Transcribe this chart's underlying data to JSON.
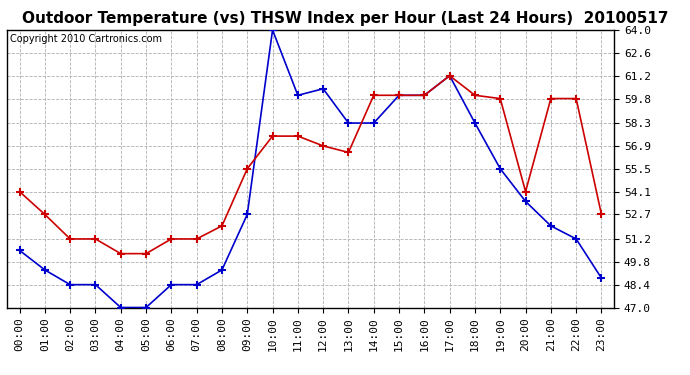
{
  "title": "Outdoor Temperature (vs) THSW Index per Hour (Last 24 Hours)  20100517",
  "copyright": "Copyright 2010 Cartronics.com",
  "x_labels": [
    "00:00",
    "01:00",
    "02:00",
    "03:00",
    "04:00",
    "05:00",
    "06:00",
    "07:00",
    "08:00",
    "09:00",
    "10:00",
    "11:00",
    "12:00",
    "13:00",
    "14:00",
    "15:00",
    "16:00",
    "17:00",
    "18:00",
    "19:00",
    "20:00",
    "21:00",
    "22:00",
    "23:00"
  ],
  "temp_data": [
    50.5,
    49.3,
    48.4,
    48.4,
    47.0,
    47.0,
    48.4,
    48.4,
    49.3,
    52.7,
    64.0,
    60.0,
    60.4,
    58.3,
    58.3,
    60.0,
    60.0,
    61.2,
    58.3,
    55.5,
    53.5,
    52.0,
    51.2,
    48.8
  ],
  "thsw_data": [
    54.1,
    52.7,
    51.2,
    51.2,
    50.3,
    50.3,
    51.2,
    51.2,
    52.0,
    55.5,
    57.5,
    57.5,
    56.9,
    56.5,
    60.0,
    60.0,
    60.0,
    61.2,
    60.0,
    59.8,
    54.1,
    59.8,
    59.8,
    52.7
  ],
  "temp_color": "#0000cc",
  "thsw_color": "#cc0000",
  "bg_color": "#ffffff",
  "plot_bg_color": "#ffffff",
  "grid_color": "#b0b0b0",
  "ylim": [
    47.0,
    64.0
  ],
  "yticks": [
    47.0,
    48.4,
    49.8,
    51.2,
    52.7,
    54.1,
    55.5,
    56.9,
    58.3,
    59.8,
    61.2,
    62.6,
    64.0
  ],
  "title_fontsize": 11,
  "copyright_fontsize": 7,
  "tick_fontsize": 8
}
